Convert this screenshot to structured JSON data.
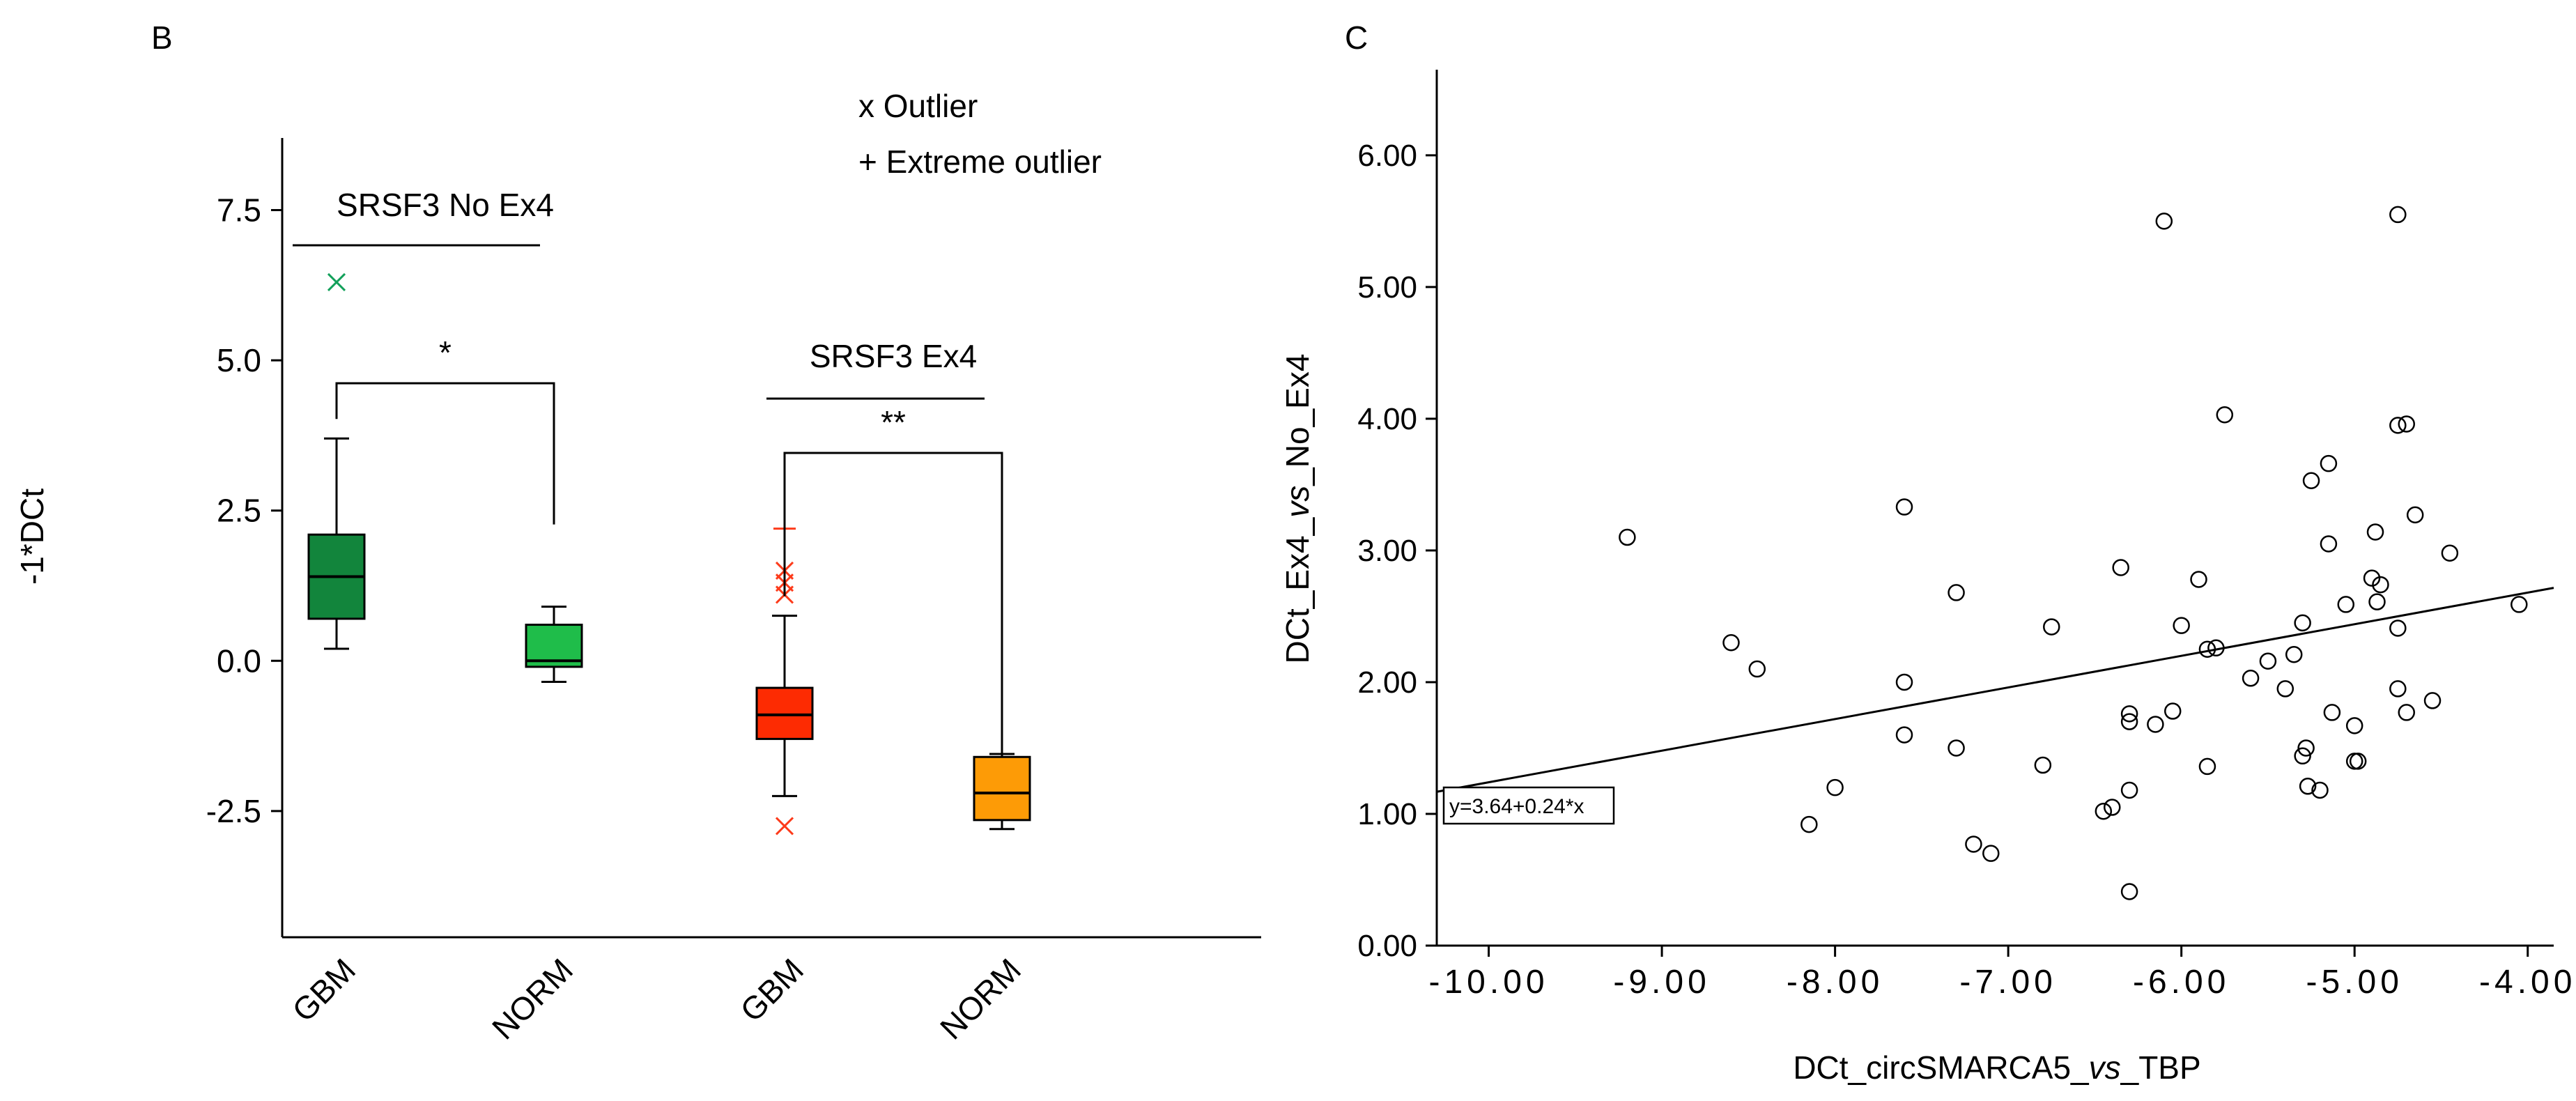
{
  "chart_data": [
    {
      "panel": "B",
      "type": "box",
      "ylabel": "-1*DCt",
      "ylim": [
        -4.6,
        8.7
      ],
      "yticks": [
        -2.5,
        0.0,
        2.5,
        5.0,
        7.5
      ],
      "ytick_labels": [
        "-2.5",
        "0.0",
        "2.5",
        "5.0",
        "7.5"
      ],
      "legend": [
        "x Outlier",
        "+ Extreme outlier"
      ],
      "groups": [
        {
          "label": "SRSF3 No Ex4",
          "significance": "*",
          "boxes": [
            {
              "category": "GBM",
              "color": "#12853c",
              "whisker_low": 0.2,
              "q1": 0.7,
              "median": 1.4,
              "q3": 2.1,
              "whisker_high": 3.7,
              "outliers": [
                6.3
              ],
              "extreme_outliers": [],
              "outlier_color": "#12a05a"
            },
            {
              "category": "NORM",
              "color": "#1fbd4a",
              "whisker_low": -0.35,
              "q1": -0.1,
              "median": 0.0,
              "q3": 0.6,
              "whisker_high": 0.9,
              "outliers": [],
              "extreme_outliers": [],
              "outlier_color": "#12a05a"
            }
          ]
        },
        {
          "label": "SRSF3 Ex4",
          "significance": "**",
          "boxes": [
            {
              "category": "GBM",
              "color": "#fd2b02",
              "whisker_low": -2.25,
              "q1": -1.3,
              "median": -0.9,
              "q3": -0.45,
              "whisker_high": 0.75,
              "outliers": [
                1.5,
                1.3,
                1.1,
                -2.75
              ],
              "extreme_outliers": [
                2.2
              ],
              "outlier_color": "#fd3b1b"
            },
            {
              "category": "NORM",
              "color": "#fd9b06",
              "whisker_low": -2.8,
              "q1": -2.65,
              "median": -2.2,
              "q3": -1.6,
              "whisker_high": -1.55,
              "outliers": [],
              "extreme_outliers": [],
              "outlier_color": "#fd3b1b"
            }
          ]
        }
      ]
    },
    {
      "panel": "C",
      "type": "scatter",
      "xlabel_parts": [
        "DCt_circSMARCA5_",
        "vs",
        "_TBP"
      ],
      "ylabel_parts": [
        "DCt_Ex4_",
        "vs",
        "_No_Ex4"
      ],
      "xlim": [
        -10.3,
        -3.85
      ],
      "ylim": [
        0.0,
        6.65
      ],
      "xticks": [
        -10,
        -9,
        -8,
        -7,
        -6,
        -5,
        -4
      ],
      "xtick_labels": [
        "-10.00",
        "-9.00",
        "-8.00",
        "-7.00",
        "-6.00",
        "-5.00",
        "-4.00"
      ],
      "yticks": [
        0,
        1,
        2,
        3,
        4,
        5,
        6
      ],
      "ytick_labels": [
        "0.00",
        "1.00",
        "2.00",
        "3.00",
        "4.00",
        "5.00",
        "6.00"
      ],
      "fit": {
        "intercept": 3.64,
        "slope": 0.24,
        "label": "y=3.64+0.24*x"
      },
      "points": [
        [
          -9.2,
          3.1
        ],
        [
          -8.6,
          2.3
        ],
        [
          -8.45,
          2.1
        ],
        [
          -8.15,
          0.92
        ],
        [
          -8.0,
          1.2
        ],
        [
          -7.6,
          3.33
        ],
        [
          -7.6,
          2.0
        ],
        [
          -7.6,
          1.6
        ],
        [
          -7.3,
          2.68
        ],
        [
          -7.3,
          1.5
        ],
        [
          -7.2,
          0.77
        ],
        [
          -7.1,
          0.7
        ],
        [
          -6.8,
          1.37
        ],
        [
          -6.75,
          2.42
        ],
        [
          -6.45,
          1.02
        ],
        [
          -6.4,
          1.05
        ],
        [
          -6.35,
          2.87
        ],
        [
          -6.3,
          1.76
        ],
        [
          -6.3,
          1.7
        ],
        [
          -6.3,
          1.18
        ],
        [
          -6.3,
          0.41
        ],
        [
          -6.15,
          1.68
        ],
        [
          -6.1,
          5.5
        ],
        [
          -6.05,
          1.78
        ],
        [
          -6.0,
          2.43
        ],
        [
          -5.9,
          2.78
        ],
        [
          -5.85,
          2.25
        ],
        [
          -5.85,
          1.36
        ],
        [
          -5.8,
          2.26
        ],
        [
          -5.75,
          4.03
        ],
        [
          -5.6,
          2.03
        ],
        [
          -5.5,
          2.16
        ],
        [
          -5.4,
          1.95
        ],
        [
          -5.35,
          2.21
        ],
        [
          -5.3,
          2.45
        ],
        [
          -5.3,
          1.44
        ],
        [
          -5.28,
          1.5
        ],
        [
          -5.27,
          1.21
        ],
        [
          -5.25,
          3.53
        ],
        [
          -5.2,
          1.18
        ],
        [
          -5.15,
          3.66
        ],
        [
          -5.15,
          3.05
        ],
        [
          -5.13,
          1.77
        ],
        [
          -5.05,
          2.59
        ],
        [
          -5.0,
          1.4
        ],
        [
          -5.0,
          1.67
        ],
        [
          -4.98,
          1.4
        ],
        [
          -4.9,
          2.79
        ],
        [
          -4.88,
          3.14
        ],
        [
          -4.87,
          2.61
        ],
        [
          -4.85,
          2.74
        ],
        [
          -4.75,
          5.55
        ],
        [
          -4.75,
          3.95
        ],
        [
          -4.75,
          2.41
        ],
        [
          -4.75,
          1.95
        ],
        [
          -4.7,
          3.96
        ],
        [
          -4.7,
          1.77
        ],
        [
          -4.65,
          3.27
        ],
        [
          -4.55,
          1.86
        ],
        [
          -4.45,
          2.98
        ],
        [
          -4.05,
          2.59
        ]
      ]
    }
  ],
  "panel_letters": {
    "b": "B",
    "c": "C"
  },
  "colors": {
    "axis": "#000000",
    "background": "#ffffff"
  }
}
